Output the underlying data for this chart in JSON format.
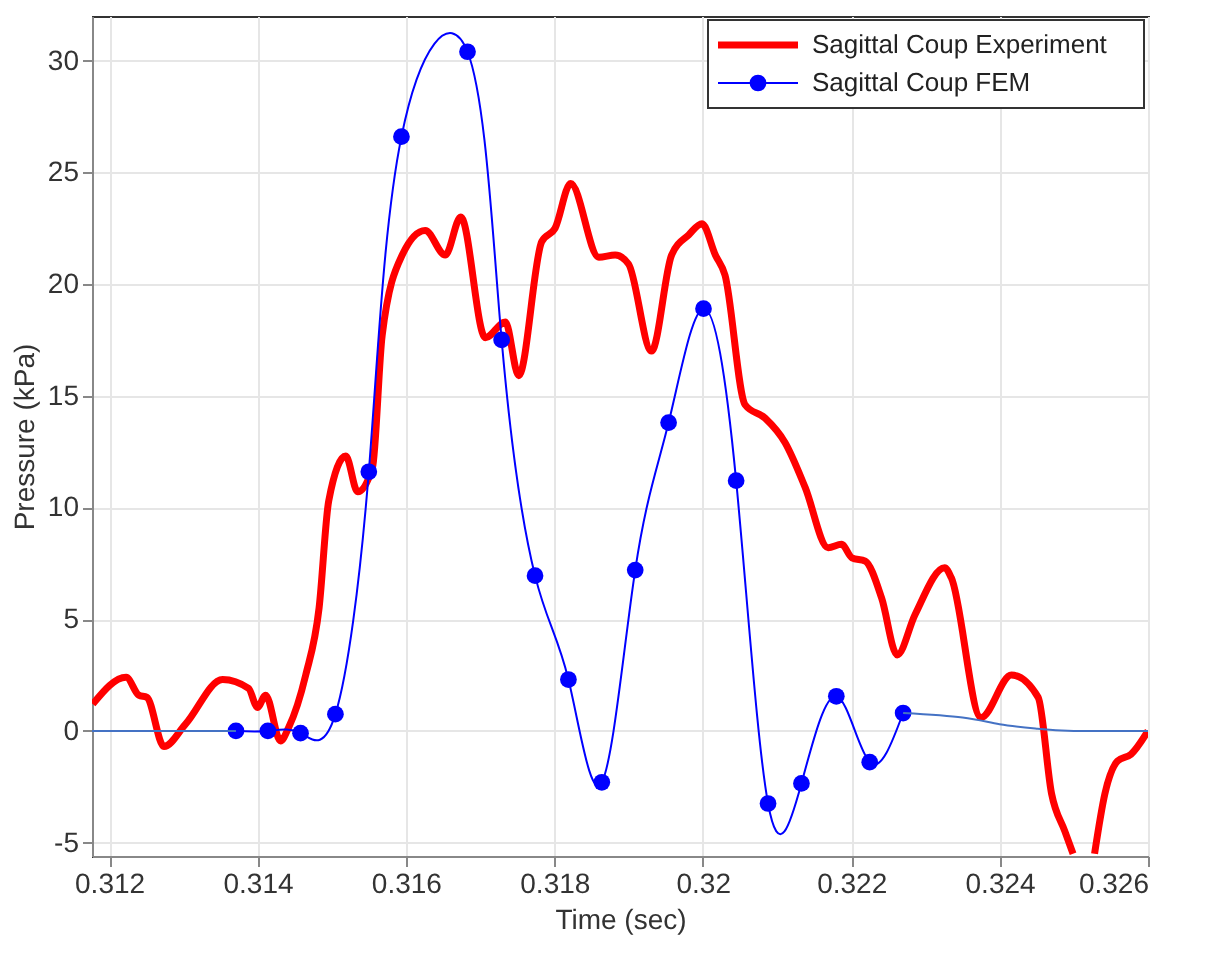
{
  "chart_data": {
    "type": "line",
    "xlabel": "Time (sec)",
    "ylabel": "Pressure (kPa)",
    "xlim": [
      0.31177,
      0.326
    ],
    "ylim": [
      -5.6,
      32
    ],
    "xticks": [
      0.312,
      0.314,
      0.316,
      0.318,
      0.32,
      0.322,
      0.324,
      0.326
    ],
    "yticks": [
      -5,
      0,
      5,
      10,
      15,
      20,
      25,
      30
    ],
    "grid": true,
    "legend": "top right",
    "series": [
      {
        "name": "Sagittal Coup Experiment",
        "color": "#ff0000",
        "x": [
          0.31178,
          0.31223,
          0.3124,
          0.31251,
          0.31274,
          0.31303,
          0.31353,
          0.31388,
          0.314,
          0.31411,
          0.31431,
          0.31442,
          0.31465,
          0.31483,
          0.31496,
          0.31519,
          0.31535,
          0.31555,
          0.31568,
          0.31595,
          0.31626,
          0.31653,
          0.31674,
          0.31707,
          0.31734,
          0.31752,
          0.31783,
          0.31801,
          0.31822,
          0.3186,
          0.31882,
          0.319,
          0.31931,
          0.31958,
          0.31981,
          0.31999,
          0.32017,
          0.3203,
          0.32057,
          0.32084,
          0.32111,
          0.32138,
          0.32169,
          0.32187,
          0.32201,
          0.32219,
          0.32241,
          0.32262,
          0.32286,
          0.32326,
          0.32335,
          0.32375,
          0.32416,
          0.32452,
          0.3247,
          0.32488,
          0.32499,
          0.3251,
          0.3252,
          0.32528,
          0.32542,
          0.32559,
          0.32577,
          0.326
        ],
        "values": [
          1.2,
          2.4,
          1.6,
          1.5,
          -0.7,
          0.3,
          2.3,
          1.9,
          1.05,
          1.6,
          -0.45,
          0.15,
          2.5,
          5.5,
          10.3,
          12.3,
          10.7,
          11.8,
          17.7,
          21.3,
          22.4,
          21.3,
          23.0,
          17.6,
          18.3,
          15.9,
          21.9,
          22.5,
          24.5,
          21.2,
          21.3,
          20.9,
          17.0,
          21.3,
          22.2,
          22.7,
          21.3,
          20.4,
          14.6,
          14.0,
          12.9,
          10.9,
          8.2,
          8.35,
          7.75,
          7.6,
          5.95,
          3.4,
          5.2,
          7.3,
          6.85,
          0.6,
          2.5,
          1.5,
          -2.8,
          -4.5,
          -5.5,
          null,
          null,
          -5.5,
          -2.8,
          -1.35,
          -1.05,
          0
        ]
      },
      {
        "name": "Sagittal Coup FEM",
        "color": "#0000ff",
        "marker": "circle",
        "x": [
          0.31371,
          0.31414,
          0.31458,
          0.31505,
          0.3155,
          0.31594,
          0.31683,
          0.31729,
          0.31774,
          0.31819,
          0.31864,
          0.31909,
          0.31954,
          0.32001,
          0.32045,
          0.32088,
          0.32133,
          0.3218,
          0.32225,
          0.3227
        ],
        "values": [
          0,
          0,
          -0.1,
          0.75,
          11.6,
          26.6,
          30.4,
          17.5,
          6.95,
          2.3,
          -2.3,
          7.2,
          13.8,
          18.9,
          11.2,
          -3.25,
          -2.35,
          1.55,
          -1.4,
          0.8
        ]
      },
      {
        "color": "#4472c4",
        "x": [
          0.31177,
          0.31371
        ],
        "values": [
          0,
          0
        ]
      },
      {
        "color": "#4472c4",
        "x": [
          0.3227,
          0.3235,
          0.324,
          0.3245,
          0.325,
          0.326
        ],
        "values": [
          0.8,
          0.6,
          0.3,
          0.1,
          0,
          0
        ]
      }
    ]
  }
}
